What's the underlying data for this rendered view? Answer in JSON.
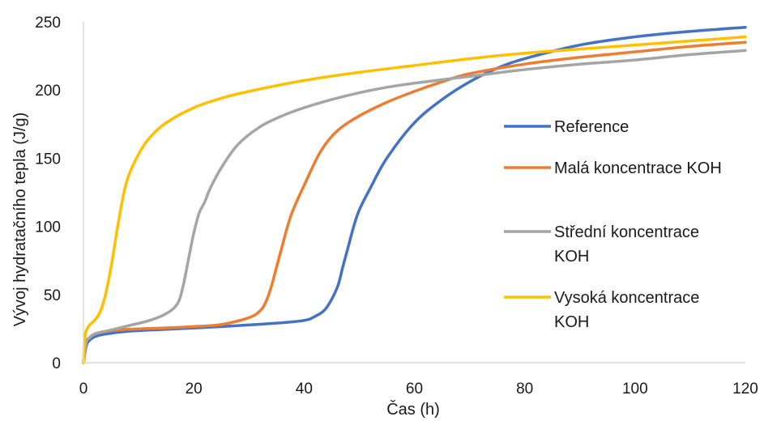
{
  "chart_data": {
    "type": "line",
    "xlabel": "Čas (h)",
    "ylabel": "Vývoj hydratačního tepla  (J/g)",
    "xlim": [
      0,
      120
    ],
    "ylim": [
      0,
      250
    ],
    "xticks": [
      0,
      20,
      40,
      60,
      80,
      100,
      120
    ],
    "yticks": [
      0,
      50,
      100,
      150,
      200,
      250
    ],
    "grid": false,
    "legend": "right",
    "series": [
      {
        "name": "Reference",
        "color": "#4472C4",
        "x": [
          0,
          0.5,
          1,
          2,
          4,
          8,
          15,
          25,
          35,
          40,
          42,
          44,
          46,
          47,
          48,
          49,
          50,
          52,
          55,
          60,
          65,
          70,
          75,
          80,
          90,
          100,
          110,
          120
        ],
        "y": [
          0,
          12,
          16,
          19,
          21,
          23,
          24.5,
          26.5,
          29,
          31,
          34,
          40,
          55,
          70,
          85,
          100,
          112,
          128,
          150,
          176,
          193,
          206,
          216,
          223,
          233,
          239,
          243,
          246
        ]
      },
      {
        "name": "Malá koncentrace KOH",
        "color": "#ED7D31",
        "x": [
          0,
          0.5,
          1,
          2,
          4,
          8,
          15,
          20,
          25,
          30,
          32,
          33,
          34,
          35,
          36,
          37,
          38,
          40,
          43,
          46,
          50,
          55,
          60,
          65,
          70,
          80,
          90,
          100,
          110,
          120
        ],
        "y": [
          0,
          14,
          18,
          21,
          23,
          24.5,
          25.5,
          26.5,
          28,
          33,
          38,
          44,
          55,
          70,
          85,
          100,
          112,
          130,
          155,
          170,
          181,
          191,
          199,
          206,
          212,
          219,
          224,
          228,
          232,
          235
        ]
      },
      {
        "name": "Střední koncentrace KOH",
        "color": "#A5A5A5",
        "x": [
          0,
          0.5,
          1,
          2,
          4,
          8,
          12,
          15,
          17,
          18,
          19,
          20,
          21,
          22,
          23,
          25,
          28,
          32,
          36,
          40,
          45,
          50,
          55,
          60,
          70,
          80,
          90,
          100,
          110,
          120
        ],
        "y": [
          0,
          15,
          18,
          21,
          23,
          27,
          31,
          36,
          43,
          55,
          75,
          95,
          110,
          118,
          128,
          143,
          160,
          173,
          181,
          187,
          193,
          198,
          202,
          205,
          210,
          215,
          219,
          222,
          226,
          229
        ]
      },
      {
        "name": "Vysoká koncentrace KOH",
        "color": "#FFC000",
        "x": [
          0,
          0.3,
          1,
          2,
          3,
          4,
          5,
          6,
          7,
          8,
          10,
          12,
          15,
          20,
          25,
          30,
          40,
          50,
          60,
          70,
          80,
          90,
          100,
          110,
          120
        ],
        "y": [
          0,
          20,
          27,
          31,
          37,
          50,
          70,
          95,
          118,
          135,
          153,
          165,
          176,
          187,
          194,
          199,
          207,
          213,
          218,
          223,
          227,
          230,
          233,
          236,
          239
        ]
      }
    ]
  }
}
